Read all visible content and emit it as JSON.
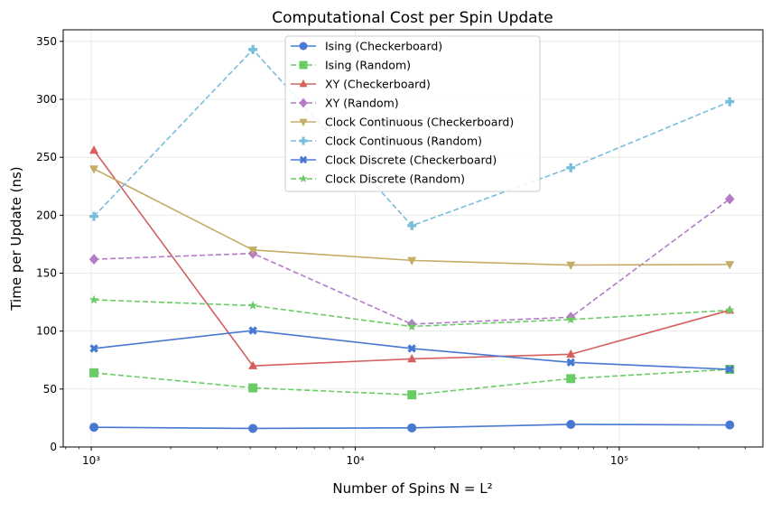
{
  "chart_data": {
    "type": "line",
    "title": "Computational Cost per Spin Update",
    "xlabel": "Number of Spins N = L²",
    "ylabel": "Time per Update (ns)",
    "x_scale": "log",
    "xlim": [
      783,
      350000
    ],
    "ylim": [
      0,
      360
    ],
    "grid": true,
    "legend_position": "top-center",
    "x_ticks": [
      {
        "value": 1000,
        "label": "10³"
      },
      {
        "value": 10000,
        "label": "10⁴"
      },
      {
        "value": 100000,
        "label": "10⁵"
      }
    ],
    "y_ticks": [
      0,
      50,
      100,
      150,
      200,
      250,
      300,
      350
    ],
    "x": [
      1024,
      4096,
      16384,
      65536,
      262144
    ],
    "series": [
      {
        "name": "Ising (Checkerboard)",
        "color": "#4878d0",
        "marker": "circle",
        "dashed": false,
        "values": [
          17,
          16,
          16.5,
          19.5,
          19
        ]
      },
      {
        "name": "Ising (Random)",
        "color": "#6acc64",
        "marker": "square",
        "dashed": true,
        "values": [
          64,
          51,
          45,
          59,
          67
        ]
      },
      {
        "name": "XY (Checkerboard)",
        "color": "#d65f5f",
        "marker": "triangle-up",
        "dashed": false,
        "values": [
          256,
          70,
          76,
          80,
          118
        ]
      },
      {
        "name": "XY (Random)",
        "color": "#b47cc7",
        "marker": "diamond",
        "dashed": true,
        "values": [
          162,
          167,
          106,
          112,
          214
        ]
      },
      {
        "name": "Clock Continuous (Checkerboard)",
        "color": "#c4ad66",
        "marker": "triangle-down",
        "dashed": false,
        "values": [
          240,
          170,
          161,
          157,
          157.5
        ]
      },
      {
        "name": "Clock Continuous (Random)",
        "color": "#77bedb",
        "marker": "plus",
        "dashed": true,
        "values": [
          199,
          343,
          191,
          241,
          298
        ]
      },
      {
        "name": "Clock Discrete (Checkerboard)",
        "color": "#4878d0",
        "marker": "x",
        "dashed": false,
        "values": [
          85,
          100.5,
          85,
          73,
          67
        ]
      },
      {
        "name": "Clock Discrete (Random)",
        "color": "#6acc64",
        "marker": "star",
        "dashed": true,
        "values": [
          127,
          122,
          104,
          110,
          118
        ]
      }
    ]
  }
}
